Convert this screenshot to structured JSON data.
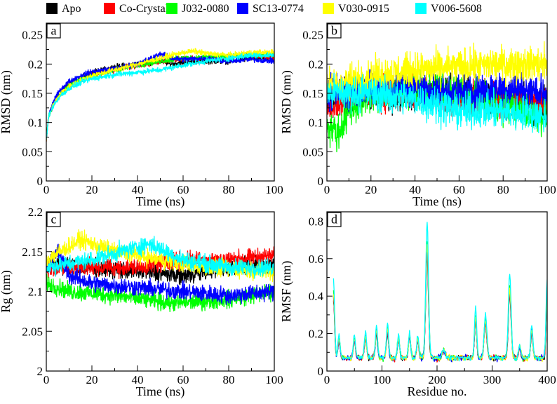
{
  "legend": [
    {
      "label": "Apo",
      "color": "#000000"
    },
    {
      "label": "Co-Crystal",
      "color": "#ff0000"
    },
    {
      "label": "J032-0080",
      "color": "#00ff00"
    },
    {
      "label": "SC13-0774",
      "color": "#0000ff"
    },
    {
      "label": "V030-0915",
      "color": "#ffff00"
    },
    {
      "label": "V006-5608",
      "color": "#00ffff"
    }
  ],
  "chart_data": [
    {
      "panel": "a",
      "type": "line",
      "title": "",
      "xlabel": "Time (ns)",
      "ylabel": "RMSD (nm)",
      "xlim": [
        0,
        100
      ],
      "ylim": [
        0,
        0.27
      ],
      "xticks": [
        0,
        20,
        40,
        60,
        80,
        100
      ],
      "xtick_labels": [
        "0",
        "20",
        "40",
        "60",
        "80",
        "100"
      ],
      "yticks": [
        0,
        0.05,
        0.1,
        0.15,
        0.2,
        0.25
      ],
      "ytick_labels": [
        "0",
        "0.05",
        "0.1",
        "0.15",
        "0.2",
        "0.25"
      ],
      "noise": 0.004,
      "series": [
        {
          "name": "Apo",
          "x": [
            0,
            1,
            3,
            6,
            10,
            15,
            20,
            30,
            40,
            50,
            55,
            60,
            70,
            80,
            90,
            100
          ],
          "values": [
            0.07,
            0.11,
            0.13,
            0.15,
            0.163,
            0.175,
            0.185,
            0.195,
            0.2,
            0.205,
            0.2,
            0.203,
            0.205,
            0.205,
            0.21,
            0.21
          ]
        },
        {
          "name": "Co-Crystal",
          "x": [
            0,
            1,
            3,
            6,
            10,
            15,
            20,
            30,
            40,
            50,
            60,
            70,
            80,
            90,
            100
          ],
          "values": [
            0.07,
            0.11,
            0.13,
            0.148,
            0.162,
            0.172,
            0.182,
            0.19,
            0.198,
            0.205,
            0.21,
            0.21,
            0.212,
            0.215,
            0.21
          ]
        },
        {
          "name": "J032-0080",
          "x": [
            0,
            1,
            3,
            6,
            10,
            15,
            20,
            30,
            40,
            50,
            60,
            70,
            80,
            90,
            100
          ],
          "values": [
            0.07,
            0.11,
            0.132,
            0.15,
            0.163,
            0.173,
            0.18,
            0.19,
            0.198,
            0.205,
            0.21,
            0.212,
            0.213,
            0.215,
            0.215
          ]
        },
        {
          "name": "SC13-0774",
          "x": [
            0,
            1,
            3,
            6,
            10,
            15,
            20,
            30,
            40,
            45,
            50,
            55,
            60,
            70,
            80,
            90,
            100
          ],
          "values": [
            0.07,
            0.11,
            0.135,
            0.155,
            0.17,
            0.18,
            0.187,
            0.192,
            0.2,
            0.208,
            0.218,
            0.21,
            0.208,
            0.21,
            0.205,
            0.208,
            0.205
          ]
        },
        {
          "name": "V030-0915",
          "x": [
            0,
            1,
            3,
            6,
            10,
            15,
            20,
            30,
            40,
            50,
            60,
            65,
            70,
            80,
            90,
            100
          ],
          "values": [
            0.07,
            0.11,
            0.13,
            0.148,
            0.162,
            0.172,
            0.18,
            0.19,
            0.2,
            0.21,
            0.22,
            0.222,
            0.218,
            0.215,
            0.22,
            0.22
          ]
        },
        {
          "name": "V006-5608",
          "x": [
            0,
            1,
            3,
            6,
            10,
            15,
            20,
            30,
            40,
            50,
            60,
            70,
            80,
            90,
            100
          ],
          "values": [
            0.07,
            0.11,
            0.128,
            0.145,
            0.158,
            0.168,
            0.175,
            0.182,
            0.186,
            0.19,
            0.198,
            0.205,
            0.21,
            0.215,
            0.215
          ]
        }
      ]
    },
    {
      "panel": "b",
      "type": "line",
      "title": "",
      "xlabel": "Time (ns)",
      "ylabel": "RMSD (nm)",
      "xlim": [
        0,
        100
      ],
      "ylim": [
        0,
        0.27
      ],
      "xticks": [
        0,
        20,
        40,
        60,
        80,
        100
      ],
      "xtick_labels": [
        "0",
        "20",
        "40",
        "60",
        "80",
        "100"
      ],
      "yticks": [
        0,
        0.05,
        0.1,
        0.15,
        0.2,
        0.25
      ],
      "ytick_labels": [
        "0",
        "0.05",
        "0.1",
        "0.15",
        "0.2",
        "0.25"
      ],
      "noise": 0.025,
      "series": [
        {
          "name": "Apo",
          "x": [
            0,
            20,
            40,
            60,
            80,
            100
          ],
          "values": [
            0.14,
            0.15,
            0.15,
            0.15,
            0.14,
            0.13
          ]
        },
        {
          "name": "Co-Crystal",
          "x": [
            0,
            20,
            40,
            60,
            80,
            100
          ],
          "values": [
            0.13,
            0.15,
            0.155,
            0.14,
            0.14,
            0.13
          ]
        },
        {
          "name": "J032-0080",
          "x": [
            0,
            5,
            10,
            20,
            40,
            60,
            80,
            100
          ],
          "values": [
            0.1,
            0.08,
            0.12,
            0.15,
            0.16,
            0.15,
            0.13,
            0.11
          ]
        },
        {
          "name": "SC13-0774",
          "x": [
            0,
            20,
            40,
            60,
            80,
            100
          ],
          "values": [
            0.15,
            0.16,
            0.16,
            0.15,
            0.16,
            0.15
          ]
        },
        {
          "name": "V030-0915",
          "x": [
            0,
            20,
            40,
            60,
            80,
            100
          ],
          "values": [
            0.16,
            0.18,
            0.19,
            0.195,
            0.2,
            0.2
          ]
        },
        {
          "name": "V006-5608",
          "x": [
            0,
            20,
            40,
            50,
            60,
            80,
            100
          ],
          "values": [
            0.15,
            0.15,
            0.14,
            0.13,
            0.12,
            0.12,
            0.11
          ]
        }
      ]
    },
    {
      "panel": "c",
      "type": "line",
      "title": "",
      "xlabel": "Time (ns)",
      "ylabel": "Rg (nm)",
      "xlim": [
        0,
        100
      ],
      "ylim": [
        2,
        2.2
      ],
      "xticks": [
        0,
        20,
        40,
        60,
        80,
        100
      ],
      "xtick_labels": [
        "0",
        "20",
        "40",
        "60",
        "80",
        "100"
      ],
      "yticks": [
        2,
        2.05,
        2.1,
        2.15,
        2.2
      ],
      "ytick_labels": [
        "2",
        "2.05",
        "2.1",
        "2.15",
        "2.2"
      ],
      "noise": 0.009,
      "series": [
        {
          "name": "Apo",
          "x": [
            0,
            10,
            20,
            40,
            60,
            80,
            100
          ],
          "values": [
            2.14,
            2.13,
            2.13,
            2.125,
            2.12,
            2.13,
            2.135
          ]
        },
        {
          "name": "Co-Crystal",
          "x": [
            0,
            20,
            40,
            60,
            80,
            100
          ],
          "values": [
            2.13,
            2.13,
            2.13,
            2.14,
            2.14,
            2.145
          ]
        },
        {
          "name": "J032-0080",
          "x": [
            0,
            10,
            30,
            55,
            80,
            100
          ],
          "values": [
            2.11,
            2.1,
            2.095,
            2.085,
            2.09,
            2.1
          ]
        },
        {
          "name": "SC13-0774",
          "x": [
            0,
            5,
            10,
            20,
            40,
            60,
            80,
            100
          ],
          "values": [
            2.13,
            2.15,
            2.12,
            2.11,
            2.105,
            2.1,
            2.095,
            2.1
          ]
        },
        {
          "name": "V030-0915",
          "x": [
            0,
            15,
            30,
            50,
            70,
            100
          ],
          "values": [
            2.14,
            2.165,
            2.15,
            2.14,
            2.13,
            2.125
          ]
        },
        {
          "name": "V006-5608",
          "x": [
            0,
            20,
            45,
            60,
            80,
            100
          ],
          "values": [
            2.13,
            2.14,
            2.16,
            2.14,
            2.13,
            2.13
          ]
        }
      ]
    },
    {
      "panel": "d",
      "type": "line",
      "title": "",
      "xlabel": "Residue no.",
      "ylabel": "RMSF (nm)",
      "xlim": [
        0,
        400
      ],
      "ylim": [
        0,
        0.85
      ],
      "xticks": [
        0,
        100,
        200,
        300,
        400
      ],
      "xtick_labels": [
        "0",
        "100",
        "200",
        "300",
        "400"
      ],
      "yticks": [
        0,
        0.2,
        0.4,
        0.6,
        0.8
      ],
      "ytick_labels": [
        "0",
        "0.2",
        "0.4",
        "0.6",
        "0.8"
      ],
      "x_start": 12,
      "baseline": 0.07,
      "noise": 0.012,
      "peaks": [
        [
          12,
          0.35,
          2
        ],
        [
          22,
          0.1,
          2
        ],
        [
          50,
          0.1,
          2
        ],
        [
          70,
          0.12,
          2
        ],
        [
          90,
          0.15,
          2
        ],
        [
          110,
          0.15,
          2
        ],
        [
          130,
          0.1,
          2
        ],
        [
          150,
          0.12,
          2
        ],
        [
          165,
          0.1,
          2
        ],
        [
          182,
          0.6,
          2.5
        ],
        [
          212,
          0.04,
          3
        ],
        [
          270,
          0.22,
          2
        ],
        [
          288,
          0.2,
          2.5
        ],
        [
          332,
          0.38,
          2.5
        ],
        [
          350,
          0.06,
          2
        ],
        [
          372,
          0.15,
          2
        ],
        [
          400,
          0.35,
          2
        ]
      ],
      "series": [
        {
          "name": "Apo",
          "scale": 0.9
        },
        {
          "name": "Co-Crystal",
          "scale": 0.92
        },
        {
          "name": "J032-0080",
          "scale": 1.05
        },
        {
          "name": "SC13-0774",
          "scale": 0.95
        },
        {
          "name": "V030-0915",
          "scale": 1.0
        },
        {
          "name": "V006-5608",
          "scale": 1.2
        }
      ]
    }
  ]
}
